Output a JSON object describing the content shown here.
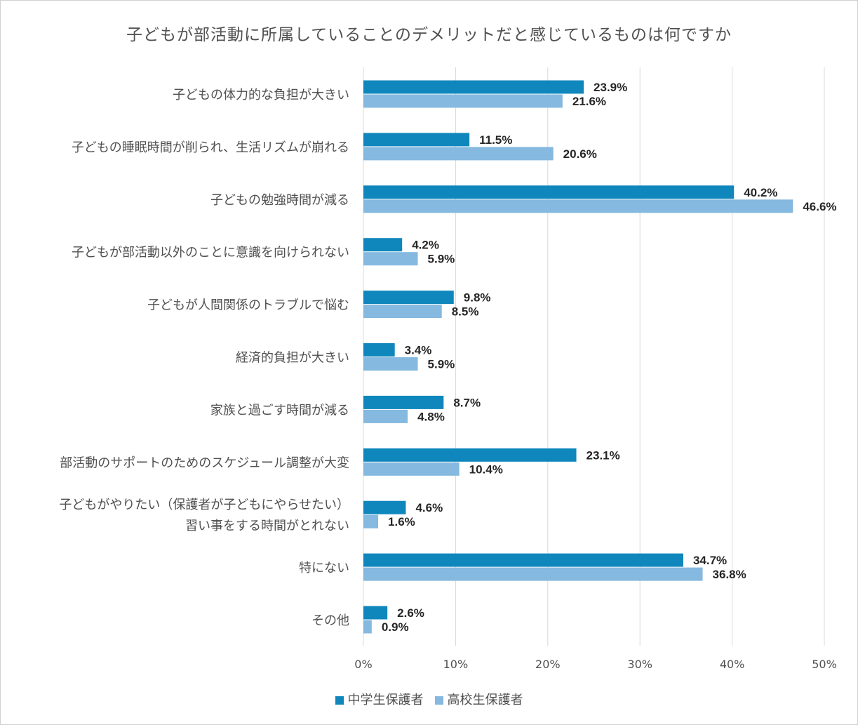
{
  "chart_data": {
    "type": "bar",
    "orientation": "horizontal",
    "title": "子どもが部活動に所属していることのデメリットだと感じているものは何ですか",
    "categories": [
      [
        "子どもの体力的な負担が大きい"
      ],
      [
        "子どもの睡眠時間が削られ、生活リズムが崩れる"
      ],
      [
        "子どもの勉強時間が減る"
      ],
      [
        "子どもが部活動以外のことに意識を向けられない"
      ],
      [
        "子どもが人間関係のトラブルで悩む"
      ],
      [
        "経済的負担が大きい"
      ],
      [
        "家族と過ごす時間が減る"
      ],
      [
        "部活動のサポートのためのスケジュール調整が大変"
      ],
      [
        "子どもがやりたい（保護者が子どもにやらせたい）",
        "習い事をする時間がとれない"
      ],
      [
        "特にない"
      ],
      [
        "その他"
      ]
    ],
    "series": [
      {
        "name": "中学生保護者",
        "color": "#0f87bc",
        "values": [
          23.9,
          11.5,
          40.2,
          4.2,
          9.8,
          3.4,
          8.7,
          23.1,
          4.6,
          34.7,
          2.6
        ]
      },
      {
        "name": "高校生保護者",
        "color": "#85b9df",
        "values": [
          21.6,
          20.6,
          46.6,
          5.9,
          8.5,
          5.9,
          4.8,
          10.4,
          1.6,
          36.8,
          0.9
        ]
      }
    ],
    "value_format": "{v}%",
    "xlim": [
      0,
      50
    ],
    "xticks": [
      0,
      10,
      20,
      30,
      40,
      50
    ],
    "xtick_labels": [
      "0%",
      "10%",
      "20%",
      "30%",
      "40%",
      "50%"
    ],
    "grid": "vertical",
    "legend_position": "bottom"
  }
}
